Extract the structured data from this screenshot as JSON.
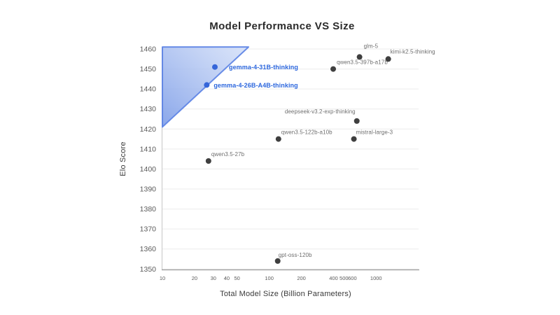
{
  "chart": {
    "title": "Model Performance VS Size",
    "xlabel": "Total Model Size (Billion Parameters)",
    "ylabel": "Elo Score"
  },
  "chart_data": {
    "type": "scatter",
    "title": "Model Performance VS Size",
    "xlabel": "Total Model Size (Billion Parameters)",
    "ylabel": "Elo Score",
    "x_scale": "log",
    "x_range": [
      10,
      2500
    ],
    "y_range": [
      1350,
      1460
    ],
    "x_ticks": [
      10,
      20,
      30,
      40,
      50,
      100,
      200,
      400,
      500,
      600,
      1000
    ],
    "y_ticks": [
      1350,
      1360,
      1370,
      1380,
      1390,
      1400,
      1410,
      1420,
      1430,
      1440,
      1450,
      1460
    ],
    "grid": "horizontal-only",
    "legend": "none",
    "highlight_region": {
      "shape": "triangle",
      "vertices_data": [
        [
          10,
          1461
        ],
        [
          64,
          1461
        ],
        [
          10,
          1421
        ]
      ],
      "fill_from": "#7d9de8",
      "fill_to": "#cfdcf7",
      "stroke": "#5b82e4"
    },
    "points": [
      {
        "label": "gemma-4-31B-thinking",
        "x": 31,
        "y": 1451,
        "dot_color": "#3565d9",
        "label_color": "#2b66dd",
        "highlight": true,
        "anchor": "start",
        "ox": 20,
        "oy": 3.5
      },
      {
        "label": "gemma-4-26B-A4B-thinking",
        "x": 26,
        "y": 1442,
        "dot_color": "#3565d9",
        "label_color": "#2b66dd",
        "highlight": true,
        "anchor": "start",
        "ox": 10,
        "oy": 3.5
      },
      {
        "label": "qwen3.5-397b-a17b",
        "x": 397,
        "y": 1450,
        "dot_color": "#3f3f3f",
        "label_color": "#6e6e6e",
        "highlight": false,
        "anchor": "start",
        "ox": 5,
        "oy": -7
      },
      {
        "label": "glm-5",
        "x": 700,
        "y": 1456,
        "dot_color": "#3f3f3f",
        "label_color": "#6e6e6e",
        "highlight": false,
        "anchor": "start",
        "ox": 6,
        "oy": -13
      },
      {
        "label": "kimi-k2.5-thinking",
        "x": 1300,
        "y": 1455,
        "dot_color": "#3f3f3f",
        "label_color": "#6e6e6e",
        "highlight": false,
        "anchor": "start",
        "ox": 3,
        "oy": -8
      },
      {
        "label": "deepseek-v3.2-exp-thinking",
        "x": 660,
        "y": 1424,
        "dot_color": "#3f3f3f",
        "label_color": "#6e6e6e",
        "highlight": false,
        "anchor": "end",
        "ox": -2,
        "oy": -11
      },
      {
        "label": "qwen3.5-122b-a10b",
        "x": 122,
        "y": 1415,
        "dot_color": "#3f3f3f",
        "label_color": "#6e6e6e",
        "highlight": false,
        "anchor": "start",
        "ox": 4,
        "oy": -7
      },
      {
        "label": "mistral-large-3",
        "x": 620,
        "y": 1415,
        "dot_color": "#3f3f3f",
        "label_color": "#6e6e6e",
        "highlight": false,
        "anchor": "start",
        "ox": 3,
        "oy": -7
      },
      {
        "label": "qwen3.5-27b",
        "x": 27,
        "y": 1404,
        "dot_color": "#3f3f3f",
        "label_color": "#6e6e6e",
        "highlight": false,
        "anchor": "start",
        "ox": 4,
        "oy": -7
      },
      {
        "label": "gpt-oss-120b",
        "x": 120,
        "y": 1354,
        "dot_color": "#3f3f3f",
        "label_color": "#6e6e6e",
        "highlight": false,
        "anchor": "start",
        "ox": 1,
        "oy": -6
      }
    ]
  },
  "colors": {
    "background": "#ffffff",
    "gridline": "#ececec",
    "bottom_spine": "#9a9a9a",
    "left_spine": "#c6c6c6",
    "highlight_accent": "#2b66dd"
  }
}
